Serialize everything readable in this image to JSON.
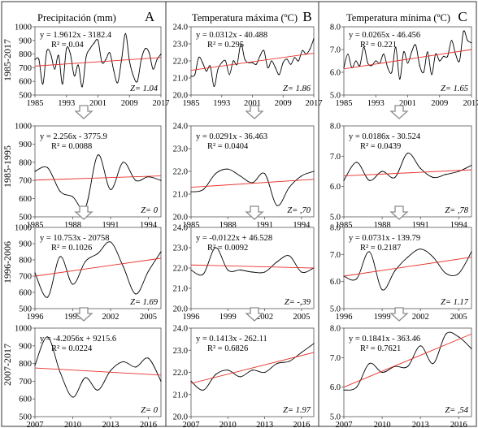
{
  "panel_labels": [
    "A",
    "B",
    "C"
  ],
  "column_titles": [
    "Precipitación (mm)",
    "Temperatura máxima (ºC)",
    "Temperatura mínima (ºC)"
  ],
  "row_labels": [
    "1985-2017",
    "1985-1995",
    "1996-2006",
    "2007-2017"
  ],
  "colors": {
    "series": "#000000",
    "trend": "#e8302a",
    "arrow": "#8c8c8c",
    "border": "#333333"
  },
  "chart_data": [
    {
      "type": "line",
      "column": 0,
      "row": 0,
      "ylim": [
        500,
        1000
      ],
      "yticks": [
        "500",
        "600",
        "700",
        "800",
        "900",
        "1000"
      ],
      "xlim": [
        1985,
        2017
      ],
      "xticks": [
        "1985",
        "1993",
        "2001",
        "2009",
        "2017"
      ],
      "equation": "y = 1.9612x - 3182.4",
      "r2": "R² = 0.04",
      "z": "Z= 1.04",
      "series": [
        {
          "x": [
            1985,
            1986,
            1987,
            1988,
            1989,
            1990,
            1991,
            1992,
            1993,
            1994,
            1995,
            1996,
            1997,
            1998,
            1999,
            2000,
            2001,
            2002,
            2003,
            2004,
            2005,
            2006,
            2007,
            2008,
            2009,
            2010,
            2011,
            2012,
            2013,
            2014,
            2015,
            2016,
            2017
          ],
          "values": [
            760,
            760,
            580,
            820,
            800,
            690,
            790,
            580,
            840,
            800,
            640,
            720,
            560,
            780,
            840,
            880,
            900,
            740,
            760,
            810,
            680,
            590,
            760,
            950,
            750,
            640,
            600,
            760,
            840,
            810,
            690,
            760,
            800
          ]
        }
      ],
      "trend": {
        "x": [
          1985,
          2017
        ],
        "values": [
          712,
          775
        ]
      }
    },
    {
      "type": "line",
      "column": 1,
      "row": 0,
      "ylim": [
        20.0,
        24.0
      ],
      "yticks": [
        "20.0",
        "21.0",
        "22.0",
        "23.0",
        "24.0"
      ],
      "xlim": [
        1985,
        2017
      ],
      "xticks": [
        "1985",
        "1993",
        "2001",
        "2009",
        "2017"
      ],
      "equation": "y = 0.0312x - 40.488",
      "r2": "R² = 0.295",
      "z": "Z= 1.86",
      "series": [
        {
          "x": [
            1985,
            1986,
            1987,
            1988,
            1989,
            1990,
            1991,
            1992,
            1993,
            1994,
            1995,
            1996,
            1997,
            1998,
            1999,
            2000,
            2001,
            2002,
            2003,
            2004,
            2005,
            2006,
            2007,
            2008,
            2009,
            2010,
            2011,
            2012,
            2013,
            2014,
            2015,
            2016,
            2017
          ],
          "values": [
            21.1,
            21.2,
            22.2,
            21.9,
            21.4,
            21.7,
            20.5,
            21.5,
            21.9,
            22.0,
            21.2,
            22.0,
            21.8,
            23.0,
            22.1,
            21.9,
            21.9,
            21.8,
            22.3,
            22.6,
            21.6,
            22.0,
            21.6,
            21.2,
            21.9,
            22.1,
            21.8,
            22.2,
            22.0,
            22.6,
            22.4,
            22.7,
            23.3
          ]
        }
      ],
      "trend": {
        "x": [
          1985,
          2017
        ],
        "values": [
          21.45,
          22.45
        ]
      }
    },
    {
      "type": "line",
      "column": 2,
      "row": 0,
      "ylim": [
        5.0,
        8.0
      ],
      "yticks": [
        "5.0",
        "6.0",
        "7.0",
        "8.0"
      ],
      "xlim": [
        1985,
        2017
      ],
      "xticks": [
        "1985",
        "1993",
        "2001",
        "2009",
        "2017"
      ],
      "equation": "y = 0.0265x - 46.456",
      "r2": "R² = 0.221",
      "z": "Z= 1.65",
      "series": [
        {
          "x": [
            1985,
            1986,
            1987,
            1988,
            1989,
            1990,
            1991,
            1992,
            1993,
            1994,
            1995,
            1996,
            1997,
            1998,
            1999,
            2000,
            2001,
            2002,
            2003,
            2004,
            2005,
            2006,
            2007,
            2008,
            2009,
            2010,
            2011,
            2012,
            2013,
            2014,
            2015,
            2016,
            2017
          ],
          "values": [
            6.2,
            6.8,
            6.2,
            6.5,
            6.3,
            7.1,
            6.4,
            6.3,
            6.5,
            6.4,
            6.8,
            6.2,
            6.0,
            7.1,
            5.7,
            6.9,
            6.4,
            6.9,
            7.2,
            6.3,
            6.0,
            6.9,
            5.9,
            6.8,
            6.5,
            6.7,
            6.7,
            7.4,
            6.8,
            6.5,
            7.8,
            7.4,
            7.3
          ]
        }
      ],
      "trend": {
        "x": [
          1985,
          2017
        ],
        "values": [
          6.15,
          7.0
        ]
      }
    },
    {
      "type": "line",
      "column": 0,
      "row": 1,
      "ylim": [
        500,
        1000
      ],
      "yticks": [
        "500",
        "600",
        "700",
        "800",
        "900",
        "1000"
      ],
      "xlim": [
        1985,
        1995
      ],
      "xticks": [
        "1985",
        "1988",
        "1991",
        "1994"
      ],
      "equation": "y = 2.256x - 3775.9",
      "r2": "R² = 0.0088",
      "z": "Z= 0",
      "series": [
        {
          "x": [
            1985,
            1986,
            1987,
            1988,
            1989,
            1990,
            1991,
            1992,
            1993,
            1994,
            1995
          ],
          "values": [
            750,
            770,
            640,
            610,
            550,
            840,
            650,
            800,
            700,
            720,
            700
          ]
        }
      ],
      "trend": {
        "x": [
          1985,
          1995
        ],
        "values": [
          702,
          725
        ]
      }
    },
    {
      "type": "line",
      "column": 1,
      "row": 1,
      "ylim": [
        20.0,
        24.0
      ],
      "yticks": [
        "20.0",
        "21.0",
        "22.0",
        "23.0",
        "24.0"
      ],
      "xlim": [
        1985,
        1995
      ],
      "xticks": [
        "1985",
        "1988",
        "1991",
        "1994"
      ],
      "equation": "y = 0.0291x - 36.463",
      "r2": "R² = 0.0404",
      "z": "Z= ,70",
      "series": [
        {
          "x": [
            1985,
            1986,
            1987,
            1988,
            1989,
            1990,
            1991,
            1992,
            1993,
            1994,
            1995
          ],
          "values": [
            21.1,
            21.2,
            21.9,
            22.1,
            21.8,
            21.5,
            21.9,
            20.5,
            21.3,
            21.8,
            22.0
          ]
        }
      ],
      "trend": {
        "x": [
          1985,
          1995
        ],
        "values": [
          21.3,
          21.65
        ]
      }
    },
    {
      "type": "line",
      "column": 2,
      "row": 1,
      "ylim": [
        5.0,
        8.0
      ],
      "yticks": [
        "5.0",
        "6.0",
        "7.0",
        "8.0"
      ],
      "xlim": [
        1985,
        1995
      ],
      "xticks": [
        "1985",
        "1988",
        "1991",
        "1994"
      ],
      "equation": "y = 0.0186x - 30.524",
      "r2": "R² = 0.0439",
      "z": "Z= ,78",
      "series": [
        {
          "x": [
            1985,
            1986,
            1987,
            1988,
            1989,
            1990,
            1991,
            1992,
            1993,
            1994,
            1995
          ],
          "values": [
            6.2,
            6.8,
            6.2,
            6.5,
            6.3,
            7.1,
            6.6,
            6.3,
            6.4,
            6.5,
            6.7
          ]
        }
      ],
      "trend": {
        "x": [
          1985,
          1995
        ],
        "values": [
          6.35,
          6.55
        ]
      }
    },
    {
      "type": "line",
      "column": 0,
      "row": 2,
      "ylim": [
        500,
        1000
      ],
      "yticks": [
        "500",
        "600",
        "700",
        "800",
        "900",
        "1000"
      ],
      "xlim": [
        1996,
        2006
      ],
      "xticks": [
        "1996",
        "1999",
        "2002",
        "2005"
      ],
      "equation": "y = 10.753x - 20758",
      "r2": "R² = 0.1026",
      "z": "Z= 1.69",
      "series": [
        {
          "x": [
            1996,
            1997,
            1998,
            1999,
            2000,
            2001,
            2002,
            2003,
            2004,
            2005,
            2006
          ],
          "values": [
            720,
            570,
            820,
            650,
            790,
            840,
            910,
            760,
            590,
            730,
            850
          ]
        }
      ],
      "trend": {
        "x": [
          1996,
          2006
        ],
        "values": [
          700,
          810
        ]
      }
    },
    {
      "type": "line",
      "column": 1,
      "row": 2,
      "ylim": [
        20.0,
        24.0
      ],
      "yticks": [
        "20.0",
        "21.0",
        "22.0",
        "23.0",
        "24.0"
      ],
      "xlim": [
        1996,
        2006
      ],
      "xticks": [
        "1996",
        "1999",
        "2002",
        "2005"
      ],
      "equation": "y = -0.0122x + 46.528",
      "r2": "R² = 0.0092",
      "z": "Z= -,39",
      "series": [
        {
          "x": [
            1996,
            1997,
            1998,
            1999,
            2000,
            2001,
            2002,
            2003,
            2004,
            2005,
            2006
          ],
          "values": [
            21.9,
            21.7,
            23.0,
            21.9,
            21.9,
            21.8,
            21.8,
            22.3,
            22.6,
            21.8,
            22.0
          ]
        }
      ],
      "trend": {
        "x": [
          1996,
          2006
        ],
        "values": [
          22.15,
          22.0
        ]
      }
    },
    {
      "type": "line",
      "column": 2,
      "row": 2,
      "ylim": [
        5.0,
        8.0
      ],
      "yticks": [
        "5.0",
        "6.0",
        "7.0",
        "8.0"
      ],
      "xlim": [
        1996,
        2006
      ],
      "xticks": [
        "1996",
        "1999",
        "2002",
        "2005"
      ],
      "equation": "y = 0.0731x - 139.79",
      "r2": "R² = 0.2187",
      "z": "Z= 1.17",
      "series": [
        {
          "x": [
            1996,
            1997,
            1998,
            1999,
            2000,
            2001,
            2002,
            2003,
            2004,
            2005,
            2006
          ],
          "values": [
            6.2,
            6.1,
            7.1,
            5.7,
            6.4,
            6.9,
            7.2,
            6.9,
            6.3,
            6.3,
            7.1
          ]
        }
      ],
      "trend": {
        "x": [
          1996,
          2006
        ],
        "values": [
          6.2,
          6.9
        ]
      }
    },
    {
      "type": "line",
      "column": 0,
      "row": 3,
      "ylim": [
        500,
        1000
      ],
      "yticks": [
        "500",
        "600",
        "700",
        "800",
        "900",
        "1000"
      ],
      "xlim": [
        2007,
        2017
      ],
      "xticks": [
        "2007",
        "2010",
        "2013",
        "2016"
      ],
      "equation": "y = -4.2056x + 9215.6",
      "r2": "R² = 0.0224",
      "z": "Z= 0",
      "series": [
        {
          "x": [
            2007,
            2008,
            2009,
            2010,
            2011,
            2012,
            2013,
            2014,
            2015,
            2016,
            2017
          ],
          "values": [
            790,
            950,
            750,
            610,
            720,
            650,
            760,
            810,
            780,
            830,
            700
          ]
        }
      ],
      "trend": {
        "x": [
          2007,
          2017
        ],
        "values": [
          775,
          735
        ]
      }
    },
    {
      "type": "line",
      "column": 1,
      "row": 3,
      "ylim": [
        20.0,
        24.0
      ],
      "yticks": [
        "20.0",
        "21.0",
        "22.0",
        "23.0",
        "24.0"
      ],
      "xlim": [
        2007,
        2017
      ],
      "xticks": [
        "2007",
        "2010",
        "2013",
        "2016"
      ],
      "equation": "y = 0.1413x - 262.11",
      "r2": "R² = 0.6826",
      "z": "Z= 1.97",
      "series": [
        {
          "x": [
            2007,
            2008,
            2009,
            2010,
            2011,
            2012,
            2013,
            2014,
            2015,
            2016,
            2017
          ],
          "values": [
            21.6,
            21.2,
            21.9,
            22.1,
            21.8,
            22.1,
            22.0,
            22.4,
            22.5,
            22.9,
            23.3
          ]
        }
      ],
      "trend": {
        "x": [
          2007,
          2017
        ],
        "values": [
          21.5,
          22.9
        ]
      }
    },
    {
      "type": "line",
      "column": 2,
      "row": 3,
      "ylim": [
        5.0,
        8.0
      ],
      "yticks": [
        "5.0",
        "6.0",
        "7.0",
        "8.0"
      ],
      "xlim": [
        2007,
        2017
      ],
      "xticks": [
        "2007",
        "2010",
        "2013",
        "2016"
      ],
      "equation": "y = 0.1841x - 363.46",
      "r2": "R² = 0.7621",
      "z": "Z= ,54",
      "series": [
        {
          "x": [
            2007,
            2008,
            2009,
            2010,
            2011,
            2012,
            2013,
            2014,
            2015,
            2016,
            2017
          ],
          "values": [
            5.9,
            6.0,
            6.8,
            6.5,
            6.7,
            6.7,
            7.4,
            6.8,
            7.8,
            7.7,
            7.3
          ]
        }
      ],
      "trend": {
        "x": [
          2007,
          2017
        ],
        "values": [
          6.0,
          7.8
        ]
      }
    }
  ]
}
